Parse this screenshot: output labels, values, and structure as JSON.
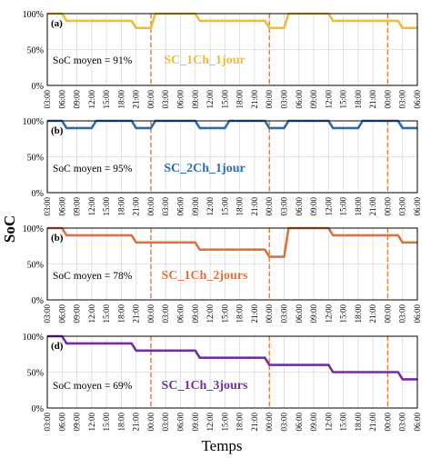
{
  "figure": {
    "ylabel": "SoC",
    "xlabel": "Temps"
  },
  "chart_data": [
    {
      "type": "line",
      "panel_label": "(a)",
      "series": [
        {
          "name": "SC_1Ch_1jour",
          "color": "#EDBD3B"
        }
      ],
      "annotation": "SoC moyen = 91%",
      "yticks": [
        "0%",
        "50%",
        "100%"
      ],
      "ylim": [
        0,
        100
      ],
      "xticks": [
        "03:00",
        "06:00",
        "09:00",
        "12:00",
        "15:00",
        "18:00",
        "21:00",
        "00:00",
        "03:00",
        "06:00",
        "09:00",
        "12:00",
        "15:00",
        "18:00",
        "21:00",
        "00:00",
        "03:00",
        "06:00",
        "09:00",
        "12:00",
        "15:00",
        "18:00",
        "21:00",
        "00:00",
        "03:00",
        "06:00"
      ],
      "grid": true,
      "day_boundaries": [
        "00:00 (1)",
        "00:00 (2)",
        "00:00 (3)"
      ],
      "x": [
        0,
        1,
        1.3,
        3,
        3.3,
        5.7,
        6,
        7,
        7.3,
        8,
        9,
        10,
        10.3,
        12,
        12.3,
        14.7,
        15,
        16,
        16.3,
        17,
        18,
        19,
        19.3,
        21,
        21.3,
        23.7,
        24,
        25
      ],
      "y": [
        100,
        100,
        90,
        90,
        90,
        90,
        80,
        80,
        100,
        100,
        100,
        100,
        90,
        90,
        90,
        90,
        80,
        80,
        100,
        100,
        100,
        100,
        90,
        90,
        90,
        90,
        80,
        80
      ]
    },
    {
      "type": "line",
      "panel_label": "(b)",
      "series": [
        {
          "name": "SC_2Ch_1jour",
          "color": "#2D6CA8"
        }
      ],
      "annotation": "SoC moyen = 95%",
      "yticks": [
        "0%",
        "50%",
        "100%"
      ],
      "ylim": [
        0,
        100
      ],
      "xticks": [
        "03:00",
        "06:00",
        "09:00",
        "12:00",
        "15:00",
        "18:00",
        "21:00",
        "00:00",
        "03:00",
        "06:00",
        "09:00",
        "12:00",
        "15:00",
        "18:00",
        "21:00",
        "00:00",
        "03:00",
        "06:00",
        "09:00",
        "12:00",
        "15:00",
        "18:00",
        "21:00",
        "00:00",
        "03:00",
        "06:00"
      ],
      "grid": true,
      "day_boundaries": [
        "00:00 (1)",
        "00:00 (2)",
        "00:00 (3)"
      ],
      "x": [
        0,
        1,
        1.3,
        3,
        3.3,
        5,
        5.3,
        5.7,
        6,
        7,
        7.3,
        8,
        9,
        10,
        10.3,
        12,
        12.3,
        14,
        14.3,
        14.7,
        15,
        16,
        16.3,
        17,
        18,
        19,
        19.3,
        21,
        21.3,
        23,
        23.3,
        23.7,
        24,
        25
      ],
      "y": [
        100,
        100,
        90,
        90,
        100,
        100,
        100,
        100,
        90,
        90,
        100,
        100,
        100,
        100,
        90,
        90,
        100,
        100,
        100,
        100,
        90,
        90,
        100,
        100,
        100,
        100,
        90,
        90,
        100,
        100,
        100,
        100,
        90,
        90
      ]
    },
    {
      "type": "line",
      "panel_label": "(b)",
      "series": [
        {
          "name": "SC_1Ch_2jours",
          "color": "#D8743F"
        }
      ],
      "annotation": "SoC moyen = 78%",
      "yticks": [
        "0%",
        "50%",
        "100%"
      ],
      "ylim": [
        0,
        100
      ],
      "xticks": [
        "03:00",
        "06:00",
        "09:00",
        "12:00",
        "15:00",
        "18:00",
        "21:00",
        "00:00",
        "03:00",
        "06:00",
        "09:00",
        "12:00",
        "15:00",
        "18:00",
        "21:00",
        "00:00",
        "03:00",
        "06:00",
        "09:00",
        "12:00",
        "15:00",
        "18:00",
        "21:00",
        "00:00",
        "03:00",
        "06:00"
      ],
      "grid": true,
      "day_boundaries": [
        "00:00 (1)",
        "00:00 (2)",
        "00:00 (3)"
      ],
      "x": [
        0,
        1,
        1.3,
        3,
        3.3,
        5.7,
        6,
        7,
        7.3,
        8,
        9,
        10,
        10.3,
        12,
        12.3,
        14.7,
        15,
        16,
        16.3,
        17,
        18,
        19,
        19.3,
        21,
        21.3,
        23.7,
        24,
        25
      ],
      "y": [
        100,
        100,
        90,
        90,
        90,
        90,
        80,
        80,
        80,
        80,
        80,
        80,
        70,
        70,
        70,
        70,
        60,
        60,
        100,
        100,
        100,
        100,
        90,
        90,
        90,
        90,
        80,
        80
      ]
    },
    {
      "type": "line",
      "panel_label": "(d)",
      "series": [
        {
          "name": "SC_1Ch_3jours",
          "color": "#7030A0"
        }
      ],
      "annotation": "SoC moyen = 69%",
      "yticks": [
        "0%",
        "50%",
        "100%"
      ],
      "ylim": [
        0,
        100
      ],
      "xticks": [
        "03:00",
        "06:00",
        "09:00",
        "12:00",
        "15:00",
        "18:00",
        "21:00",
        "00:00",
        "03:00",
        "06:00",
        "09:00",
        "12:00",
        "15:00",
        "18:00",
        "21:00",
        "00:00",
        "03:00",
        "06:00",
        "09:00",
        "12:00",
        "15:00",
        "18:00",
        "21:00",
        "00:00",
        "03:00",
        "06:00"
      ],
      "grid": true,
      "day_boundaries": [
        "00:00 (1)",
        "00:00 (2)",
        "00:00 (3)"
      ],
      "x": [
        0,
        1,
        1.3,
        3,
        3.3,
        5.7,
        6,
        7,
        7.3,
        8,
        9,
        10,
        10.3,
        12,
        12.3,
        14.7,
        15,
        16,
        16.3,
        17,
        18,
        19,
        19.3,
        21,
        21.3,
        23.7,
        24,
        25
      ],
      "y": [
        100,
        100,
        90,
        90,
        90,
        90,
        80,
        80,
        80,
        80,
        80,
        80,
        70,
        70,
        70,
        70,
        60,
        60,
        60,
        60,
        60,
        60,
        50,
        50,
        50,
        50,
        40,
        40
      ]
    }
  ]
}
